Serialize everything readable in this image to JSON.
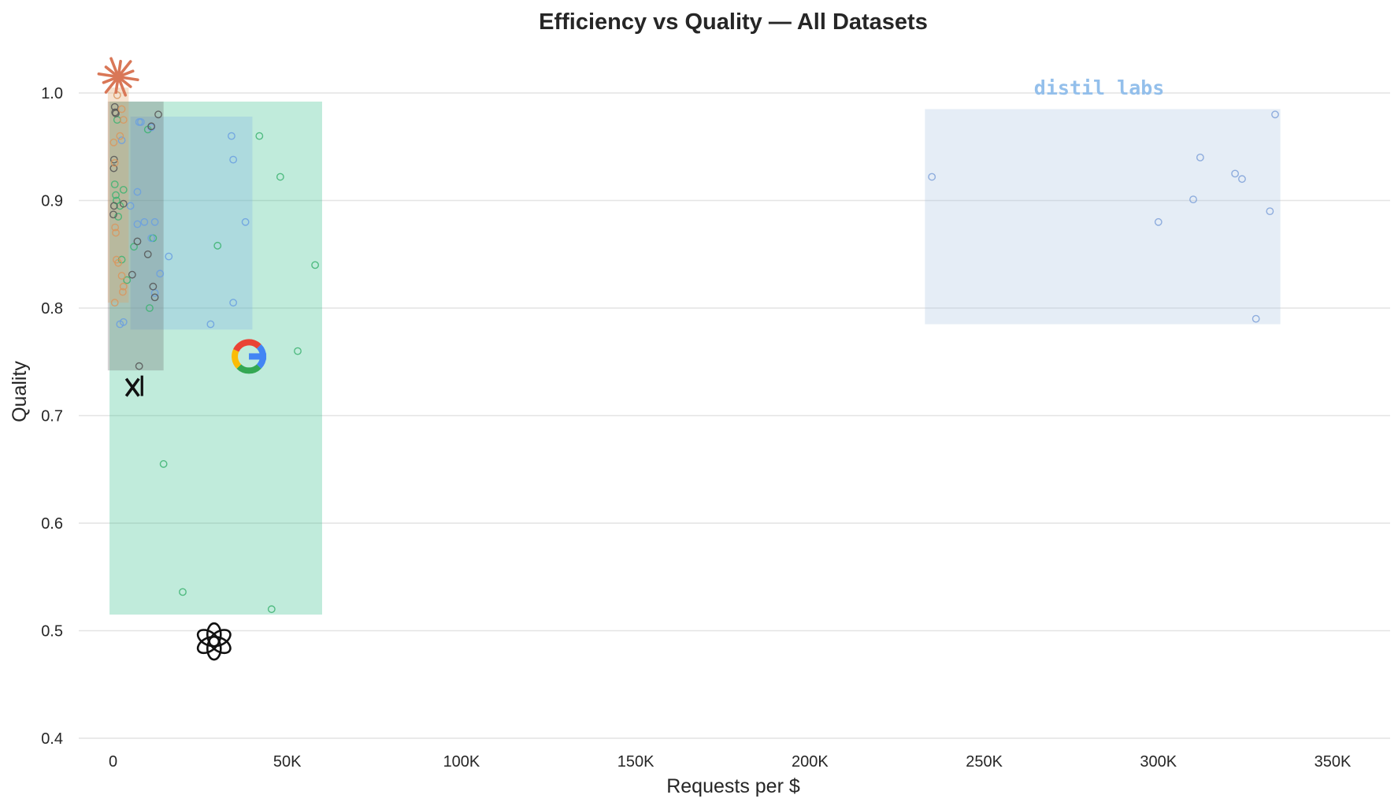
{
  "chart_data": {
    "type": "scatter",
    "title": "Efficiency vs Quality — All Datasets",
    "xlabel": "Requests per $",
    "ylabel": "Quality",
    "xlim": [
      -10000,
      367000
    ],
    "ylim": [
      0.4,
      1.045
    ],
    "x_ticks": [
      0,
      50000,
      100000,
      150000,
      200000,
      250000,
      300000,
      350000
    ],
    "x_tick_labels": [
      "0",
      "50K",
      "100K",
      "150K",
      "200K",
      "250K",
      "300K",
      "350K"
    ],
    "y_ticks": [
      0.4,
      0.5,
      0.6,
      0.7,
      0.8,
      0.9,
      1.0
    ],
    "y_tick_labels": [
      "0.4",
      "0.5",
      "0.6",
      "0.7",
      "0.8",
      "0.9",
      "1.0"
    ],
    "grid": "horizontal",
    "series": [
      {
        "color": "#3cb371",
        "box_color": "#2ebd88",
        "icon": "openai-logo-icon",
        "icon_pos": {
          "x": 29000,
          "y": 0.49
        },
        "box": {
          "x": [
            -1000,
            60000
          ],
          "y": [
            0.515,
            0.992
          ]
        },
        "points": [
          [
            42000,
            0.96
          ],
          [
            48000,
            0.922
          ],
          [
            58000,
            0.84
          ],
          [
            53000,
            0.76
          ],
          [
            30000,
            0.858
          ],
          [
            14500,
            0.655
          ],
          [
            20000,
            0.536
          ],
          [
            45500,
            0.52
          ],
          [
            10500,
            0.8
          ],
          [
            11500,
            0.865
          ],
          [
            3000,
            0.91
          ],
          [
            500,
            0.915
          ],
          [
            1000,
            0.9
          ],
          [
            1500,
            0.885
          ],
          [
            4000,
            0.826
          ],
          [
            2500,
            0.845
          ],
          [
            10000,
            0.966
          ],
          [
            6000,
            0.857
          ],
          [
            1200,
            0.975
          ],
          [
            800,
            0.905
          ],
          [
            2000,
            0.895
          ]
        ]
      },
      {
        "color": "#6a9fe0",
        "box_color": "#82b4e6",
        "icon": "google-logo-icon",
        "icon_pos": {
          "x": 39000,
          "y": 0.755
        },
        "box": {
          "x": [
            5000,
            40000
          ],
          "y": [
            0.78,
            0.978
          ]
        },
        "points": [
          [
            34000,
            0.96
          ],
          [
            34500,
            0.938
          ],
          [
            38000,
            0.88
          ],
          [
            16000,
            0.848
          ],
          [
            34500,
            0.805
          ],
          [
            28000,
            0.785
          ],
          [
            7000,
            0.908
          ],
          [
            12000,
            0.88
          ],
          [
            9000,
            0.88
          ],
          [
            7500,
            0.973
          ],
          [
            8000,
            0.973
          ],
          [
            11000,
            0.968
          ],
          [
            13500,
            0.832
          ],
          [
            12000,
            0.814
          ],
          [
            7000,
            0.878
          ],
          [
            5000,
            0.895
          ],
          [
            2500,
            0.956
          ],
          [
            2000,
            0.785
          ],
          [
            11000,
            0.865
          ],
          [
            3000,
            0.787
          ]
        ]
      },
      {
        "color": "#555555",
        "box_color": "#6b6b6b",
        "icon": "xai-logo-icon",
        "icon_pos": {
          "x": 6500,
          "y": 0.727
        },
        "box": {
          "x": [
            -1500,
            14500
          ],
          "y": [
            0.742,
            0.992
          ]
        },
        "points": [
          [
            13000,
            0.98
          ],
          [
            11000,
            0.969
          ],
          [
            500,
            0.987
          ],
          [
            600,
            0.982
          ],
          [
            7000,
            0.862
          ],
          [
            10000,
            0.85
          ],
          [
            5500,
            0.831
          ],
          [
            11500,
            0.82
          ],
          [
            12000,
            0.81
          ],
          [
            7500,
            0.746
          ],
          [
            300,
            0.938
          ],
          [
            200,
            0.93
          ],
          [
            300,
            0.895
          ],
          [
            100,
            0.887
          ],
          [
            3000,
            0.897
          ],
          [
            800,
            0.981
          ]
        ]
      },
      {
        "color": "#d9955c",
        "box_color": "#e0a060",
        "icon": "anthropic-logo-icon",
        "icon_pos": {
          "x": 1500,
          "y": 1.015
        },
        "box": {
          "x": [
            -1500,
            4500
          ],
          "y": [
            0.805,
            1.005
          ]
        },
        "points": [
          [
            2500,
            0.985
          ],
          [
            3000,
            0.975
          ],
          [
            200,
            0.954
          ],
          [
            500,
            0.935
          ],
          [
            600,
            0.875
          ],
          [
            800,
            0.87
          ],
          [
            1000,
            0.845
          ],
          [
            1500,
            0.842
          ],
          [
            2500,
            0.83
          ],
          [
            3000,
            0.82
          ],
          [
            2800,
            0.815
          ],
          [
            500,
            0.805
          ],
          [
            1200,
            0.998
          ],
          [
            2000,
            0.96
          ]
        ]
      },
      {
        "color": "#7ea0d8",
        "box_color": "#aac4e2",
        "icon": "distil-labs-logo",
        "label": "distil labs",
        "label_color": "#93bfeb",
        "icon_pos": {
          "x": 283000,
          "y": 1.005
        },
        "box": {
          "x": [
            233000,
            335000
          ],
          "y": [
            0.785,
            0.985
          ]
        },
        "points": [
          [
            235000,
            0.922
          ],
          [
            300000,
            0.88
          ],
          [
            310000,
            0.901
          ],
          [
            312000,
            0.94
          ],
          [
            322000,
            0.925
          ],
          [
            324000,
            0.92
          ],
          [
            328000,
            0.79
          ],
          [
            332000,
            0.89
          ],
          [
            333500,
            0.98
          ]
        ]
      }
    ]
  }
}
